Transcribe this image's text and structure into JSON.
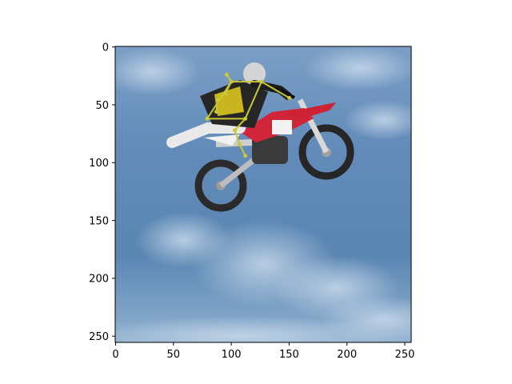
{
  "image": {
    "description_icon": "photo-icon",
    "content": "motocross rider performing a freestyle jump against a cloudy blue sky",
    "sky_top": "#5f87b4",
    "sky_bottom": "#9ab7d3",
    "overlay_color": "#c8c832"
  },
  "axes": {
    "x_ticks": [
      "0",
      "50",
      "100",
      "150",
      "200",
      "250"
    ],
    "y_ticks": [
      "0",
      "50",
      "100",
      "150",
      "200",
      "250"
    ],
    "xlim": [
      0,
      256
    ],
    "ylim": [
      256,
      0
    ]
  },
  "pose": {
    "points": [
      [
        96,
        24
      ],
      [
        100,
        30
      ],
      [
        126,
        30
      ],
      [
        150,
        44
      ],
      [
        95,
        40
      ],
      [
        88,
        46
      ],
      [
        87,
        56
      ],
      [
        79,
        62
      ],
      [
        112,
        62
      ],
      [
        103,
        72
      ],
      [
        107,
        84
      ],
      [
        112,
        94
      ]
    ],
    "edges": [
      [
        0,
        1
      ],
      [
        1,
        2
      ],
      [
        2,
        3
      ],
      [
        1,
        4
      ],
      [
        4,
        5
      ],
      [
        5,
        6
      ],
      [
        1,
        7
      ],
      [
        7,
        8
      ],
      [
        8,
        2
      ],
      [
        8,
        9
      ],
      [
        9,
        10
      ],
      [
        10,
        11
      ]
    ]
  }
}
